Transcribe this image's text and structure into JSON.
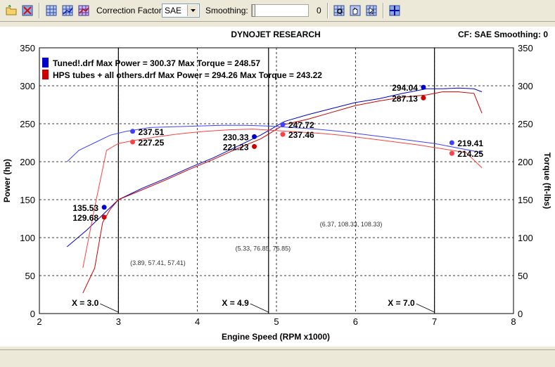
{
  "toolbar": {
    "buttons": [
      {
        "name": "open-folder-icon",
        "icon": "folder"
      },
      {
        "name": "close-runs-icon",
        "icon": "close-grid"
      }
    ],
    "correction_factor_label": "Correction Factor:",
    "correction_factor_value": "SAE",
    "smoothing_label": "Smoothing:",
    "smoothing_value": "0"
  },
  "header": {
    "title": "DYNOJET RESEARCH",
    "right_info": "CF: SAE  Smoothing: 0"
  },
  "colors": {
    "tuned": "#0000CC",
    "tuned_light": "#4040FF",
    "hps": "#CC0000",
    "hps_light": "#FF4040"
  },
  "chart_data": {
    "type": "line",
    "xlabel": "Engine Speed (RPM x1000)",
    "ylabel_left": "Power (hp)",
    "ylabel_right": "Torque (ft-lbs)",
    "xlim": [
      2,
      8
    ],
    "ylim": [
      0,
      350
    ],
    "x_ticks": [
      "2",
      "3",
      "4",
      "5",
      "6",
      "7",
      "8"
    ],
    "y_ticks": [
      "0",
      "50",
      "100",
      "150",
      "200",
      "250",
      "300",
      "350"
    ],
    "grid": true,
    "legend": [
      {
        "label": "Tuned!.drf Max Power = 300.37 Max Torque = 248.57",
        "color": "#0000CC"
      },
      {
        "label": "HPS tubes + all others.drf Max Power = 294.26 Max Torque = 243.22",
        "color": "#CC0000"
      }
    ],
    "series": [
      {
        "name": "Tuned!.drf",
        "kind": "power",
        "color": "#0000CC",
        "x": [
          2.35,
          2.6,
          2.8,
          3.0,
          3.3,
          3.6,
          3.9,
          4.2,
          4.5,
          4.8,
          5.1,
          5.4,
          5.7,
          6.0,
          6.3,
          6.6,
          6.9,
          7.1,
          7.3,
          7.5,
          7.6
        ],
        "y": [
          88,
          110,
          130,
          150,
          165,
          178,
          192,
          205,
          220,
          235,
          253,
          262,
          270,
          278,
          283,
          290,
          296,
          296,
          297,
          296,
          292
        ]
      },
      {
        "name": "HPS tubes + all others.drf",
        "kind": "power",
        "color": "#CC0000",
        "x": [
          2.55,
          2.7,
          2.8,
          2.9,
          3.0,
          3.3,
          3.6,
          3.9,
          4.2,
          4.5,
          4.8,
          5.1,
          5.4,
          5.7,
          6.0,
          6.3,
          6.6,
          6.9,
          7.1,
          7.3,
          7.5,
          7.6
        ],
        "y": [
          27,
          60,
          120,
          138,
          150,
          163,
          176,
          190,
          203,
          217,
          230,
          249,
          256,
          265,
          274,
          280,
          285,
          288,
          292,
          292,
          290,
          264
        ]
      },
      {
        "name": "Tuned!.drf",
        "kind": "torque",
        "color": "#4040FF",
        "x": [
          2.35,
          2.5,
          2.7,
          2.9,
          3.1,
          3.4,
          3.7,
          4.0,
          4.3,
          4.6,
          4.9,
          5.2,
          5.5,
          5.8,
          6.1,
          6.4,
          6.7,
          7.0,
          7.3,
          7.6
        ],
        "y": [
          200,
          215,
          225,
          235,
          240,
          245,
          246,
          247,
          248,
          248,
          247,
          245,
          243,
          240,
          236,
          232,
          228,
          224,
          218,
          212
        ]
      },
      {
        "name": "HPS tubes + all others.drf",
        "kind": "torque",
        "color": "#FF4040",
        "x": [
          2.55,
          2.7,
          2.85,
          3.0,
          3.2,
          3.5,
          3.8,
          4.1,
          4.4,
          4.7,
          5.0,
          5.3,
          5.6,
          5.9,
          6.2,
          6.5,
          6.8,
          7.1,
          7.4,
          7.6
        ],
        "y": [
          60,
          140,
          215,
          224,
          228,
          233,
          237,
          240,
          242,
          243,
          241,
          239,
          237,
          234,
          230,
          226,
          222,
          217,
          212,
          192
        ]
      }
    ],
    "point_labels": [
      {
        "text": "237.51",
        "x": 3.18,
        "y": 240,
        "color": "#4040FF",
        "anchor": "start"
      },
      {
        "text": "227.25",
        "x": 3.18,
        "y": 226,
        "color": "#FF4040",
        "anchor": "start"
      },
      {
        "text": "135.53",
        "x": 2.82,
        "y": 140,
        "color": "#0000CC",
        "anchor": "end"
      },
      {
        "text": "129.68",
        "x": 2.82,
        "y": 127,
        "color": "#CC0000",
        "anchor": "end"
      },
      {
        "text": "247.72",
        "x": 5.08,
        "y": 249,
        "color": "#4040FF",
        "anchor": "start"
      },
      {
        "text": "237.46",
        "x": 5.08,
        "y": 236,
        "color": "#FF4040",
        "anchor": "start"
      },
      {
        "text": "230.33",
        "x": 4.72,
        "y": 233,
        "color": "#0000CC",
        "anchor": "end"
      },
      {
        "text": "221.23",
        "x": 4.72,
        "y": 220,
        "color": "#CC0000",
        "anchor": "end"
      },
      {
        "text": "294.04",
        "x": 6.86,
        "y": 298,
        "color": "#0000CC",
        "anchor": "end"
      },
      {
        "text": "287.13",
        "x": 6.86,
        "y": 284,
        "color": "#CC0000",
        "anchor": "end"
      },
      {
        "text": "219.41",
        "x": 7.22,
        "y": 225,
        "color": "#4040FF",
        "anchor": "start"
      },
      {
        "text": "214.25",
        "x": 7.22,
        "y": 211,
        "color": "#FF4040",
        "anchor": "start"
      }
    ],
    "cursors": [
      {
        "label": "X = 3.0",
        "x": 3.0,
        "readout": "(3.89, 57.41, 57.41)",
        "readout_x": 3.15,
        "readout_y": 64
      },
      {
        "label": "X = 4.9",
        "x": 4.9,
        "readout": "(5.33, 76.85, 76.85)",
        "readout_x": 4.48,
        "readout_y": 83
      },
      {
        "label": "X = 7.0",
        "x": 7.0,
        "readout": "(6.37, 108.33, 108.33)",
        "readout_x": 5.55,
        "readout_y": 115
      }
    ]
  }
}
